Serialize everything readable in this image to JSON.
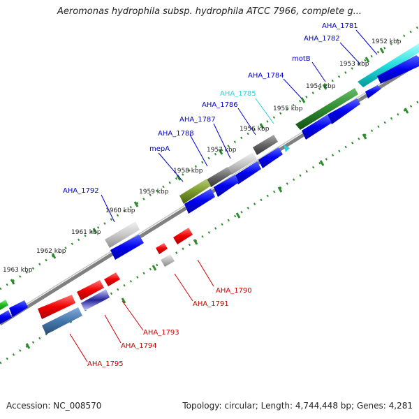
{
  "title": "Aeromonas hydrophila subsp. hydrophila ATCC 7966, complete g...",
  "footer": {
    "accession": "Accession: NC_008570",
    "summary": "Topology: circular; Length: 4,744,448 bp; Genes: 4,281"
  },
  "colors": {
    "backbone": "#888888",
    "ruler_dots": "#2e8b2e",
    "forward_label": "#0000cc",
    "reverse_label": "#cc0000",
    "highlight_label": "#33ccdd",
    "cds": "#0000ee",
    "gene_red": "#ee0000"
  },
  "ticks": [
    "1952 kbp",
    "1953 kbp",
    "1954 kbp",
    "1955 kbp",
    "1956 kbp",
    "1957 kbp",
    "1958 kbp",
    "1959 kbp",
    "1960 kbp",
    "1961 kbp",
    "1962 kbp",
    "1963 kbp"
  ],
  "forward_gene_labels": [
    "AHA_1781",
    "AHA_1782",
    "motB",
    "AHA_1784",
    "AHA_1785",
    "AHA_1786",
    "AHA_1787",
    "AHA_1788",
    "mepA",
    "AHA_1792"
  ],
  "reverse_gene_labels": [
    "AHA_1790",
    "AHA_1791",
    "AHA_1793",
    "AHA_1794",
    "AHA_1795"
  ]
}
